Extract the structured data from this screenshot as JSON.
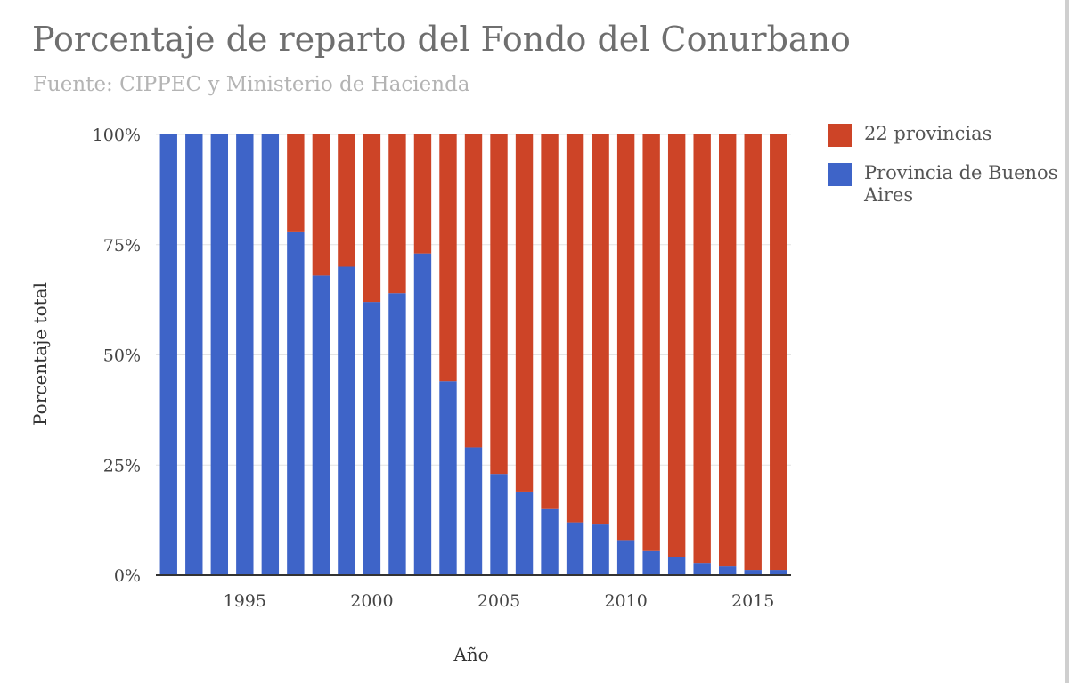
{
  "chart_data": {
    "type": "bar",
    "stacked": "percent",
    "title": "Porcentaje de reparto del Fondo del Conurbano",
    "subtitle": "Fuente: CIPPEC y Ministerio de Hacienda",
    "xlabel": "Año",
    "ylabel": "Porcentaje total",
    "ylim": [
      0,
      100
    ],
    "yticks": [
      "0%",
      "25%",
      "50%",
      "75%",
      "100%"
    ],
    "xticks": [
      "1995",
      "2000",
      "2005",
      "2010",
      "2015"
    ],
    "grid": true,
    "legend_position": "right",
    "categories": [
      1992,
      1993,
      1994,
      1995,
      1996,
      1997,
      1998,
      1999,
      2000,
      2001,
      2002,
      2003,
      2004,
      2005,
      2006,
      2007,
      2008,
      2009,
      2010,
      2011,
      2012,
      2013,
      2014,
      2015,
      2016
    ],
    "series": [
      {
        "name": "Provincia de Buenos Aires",
        "color": "#3e64c8",
        "values": [
          100,
          100,
          100,
          100,
          100,
          78,
          68,
          70,
          62,
          64,
          73,
          44,
          29,
          23,
          19,
          15,
          12,
          11.5,
          8,
          5.5,
          4.2,
          2.8,
          2,
          1.2,
          1.2
        ]
      },
      {
        "name": "22 provincias",
        "color": "#cd4427",
        "values": [
          0,
          0,
          0,
          0,
          0,
          22,
          32,
          30,
          38,
          36,
          27,
          56,
          71,
          77,
          81,
          85,
          88,
          88.5,
          92,
          94.5,
          95.8,
          97.2,
          98,
          98.8,
          98.8
        ]
      }
    ]
  },
  "legend": [
    {
      "label": "22 provincias",
      "color": "#cd4427"
    },
    {
      "label": "Provincia de Buenos Aires",
      "color": "#3e64c8"
    }
  ]
}
